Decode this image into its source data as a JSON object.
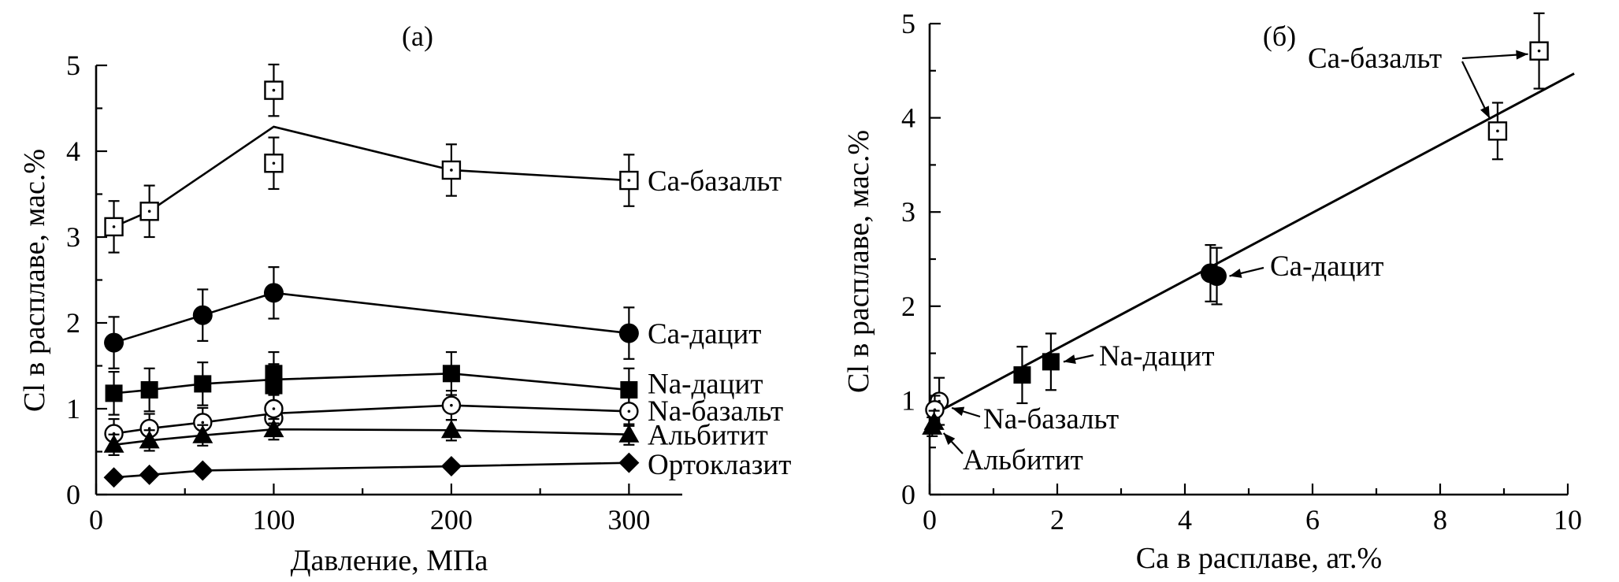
{
  "chart_data": [
    {
      "type": "line",
      "panel_label": "(а)",
      "xlabel": "Давление, МПа",
      "ylabel": "Cl в расплаве, мас.%",
      "xlim": [
        0,
        330
      ],
      "ylim": [
        0,
        5
      ],
      "xticks": [
        "0",
        "100",
        "200",
        "300"
      ],
      "yticks": [
        "0",
        "1",
        "2",
        "3",
        "4",
        "5"
      ],
      "grid": false,
      "series": [
        {
          "name": "Са-базальт",
          "marker": "open-square",
          "connect": "mean",
          "points": [
            {
              "x": 10,
              "y": 3.12,
              "err": 0.3
            },
            {
              "x": 30,
              "y": 3.3,
              "err": 0.3
            },
            {
              "x": 100,
              "y": 3.86,
              "err": 0.3
            },
            {
              "x": 100,
              "y": 4.71,
              "err": 0.3
            },
            {
              "x": 200,
              "y": 3.78,
              "err": 0.3
            },
            {
              "x": 300,
              "y": 3.66,
              "err": 0.3
            }
          ]
        },
        {
          "name": "Са-дацит",
          "marker": "filled-circle",
          "connect": "mean",
          "points": [
            {
              "x": 10,
              "y": 1.77,
              "err": 0.3
            },
            {
              "x": 60,
              "y": 2.09,
              "err": 0.3
            },
            {
              "x": 100,
              "y": 2.35,
              "err": 0.3
            },
            {
              "x": 300,
              "y": 1.88,
              "err": 0.3
            }
          ]
        },
        {
          "name": "Na-дацит",
          "marker": "filled-square",
          "connect": "mean",
          "points": [
            {
              "x": 10,
              "y": 1.18,
              "err": 0.25
            },
            {
              "x": 30,
              "y": 1.22,
              "err": 0.25
            },
            {
              "x": 60,
              "y": 1.29,
              "err": 0.25
            },
            {
              "x": 100,
              "y": 1.27,
              "err": 0.25
            },
            {
              "x": 100,
              "y": 1.41,
              "err": 0.25
            },
            {
              "x": 200,
              "y": 1.41,
              "err": 0.25
            },
            {
              "x": 300,
              "y": 1.22,
              "err": 0.25
            }
          ]
        },
        {
          "name": "Na-базальт",
          "marker": "open-circle",
          "connect": "mean",
          "points": [
            {
              "x": 10,
              "y": 0.71,
              "err": 0.17
            },
            {
              "x": 30,
              "y": 0.77,
              "err": 0.17
            },
            {
              "x": 60,
              "y": 0.84,
              "err": 0.17
            },
            {
              "x": 100,
              "y": 0.89,
              "err": 0.17
            },
            {
              "x": 100,
              "y": 1.0,
              "err": 0.17
            },
            {
              "x": 200,
              "y": 1.04,
              "err": 0.17
            },
            {
              "x": 300,
              "y": 0.97,
              "err": 0.17
            }
          ]
        },
        {
          "name": "Альбитит",
          "marker": "filled-triangle",
          "connect": "mean",
          "points": [
            {
              "x": 10,
              "y": 0.58,
              "err": 0.12
            },
            {
              "x": 30,
              "y": 0.63,
              "err": 0.12
            },
            {
              "x": 60,
              "y": 0.69,
              "err": 0.12
            },
            {
              "x": 100,
              "y": 0.76,
              "err": 0.12
            },
            {
              "x": 200,
              "y": 0.75,
              "err": 0.12
            },
            {
              "x": 300,
              "y": 0.7,
              "err": 0.12
            }
          ]
        },
        {
          "name": "Ортоклазит",
          "marker": "filled-diamond",
          "connect": "mean",
          "points": [
            {
              "x": 10,
              "y": 0.2,
              "err": 0
            },
            {
              "x": 30,
              "y": 0.23,
              "err": 0
            },
            {
              "x": 60,
              "y": 0.28,
              "err": 0
            },
            {
              "x": 200,
              "y": 0.33,
              "err": 0
            },
            {
              "x": 300,
              "y": 0.37,
              "err": 0
            }
          ]
        }
      ]
    },
    {
      "type": "scatter",
      "panel_label": "(б)",
      "xlabel": "Са в расплаве, ат.%",
      "ylabel": "Cl в расплаве, мас.%",
      "xlim": [
        0,
        10
      ],
      "ylim": [
        0,
        5
      ],
      "xticks": [
        "0",
        "2",
        "4",
        "6",
        "8",
        "10"
      ],
      "yticks": [
        "0",
        "1",
        "2",
        "3",
        "4",
        "5"
      ],
      "grid": false,
      "fit_line": {
        "x": [
          0,
          10.1
        ],
        "y": [
          0.83,
          4.47
        ]
      },
      "series": [
        {
          "name": "Са-базальт",
          "marker": "open-square",
          "points": [
            {
              "x": 8.9,
              "y": 3.86,
              "err": 0.3
            },
            {
              "x": 9.55,
              "y": 4.71,
              "err": 0.4
            }
          ]
        },
        {
          "name": "Са-дацит",
          "marker": "filled-circle",
          "points": [
            {
              "x": 4.4,
              "y": 2.35,
              "err": 0.3
            },
            {
              "x": 4.5,
              "y": 2.32,
              "err": 0.3
            }
          ]
        },
        {
          "name": "Na-дацит",
          "marker": "filled-square",
          "points": [
            {
              "x": 1.45,
              "y": 1.27,
              "err": 0.3
            },
            {
              "x": 1.9,
              "y": 1.41,
              "err": 0.3
            }
          ]
        },
        {
          "name": "Na-базальт",
          "marker": "open-circle",
          "points": [
            {
              "x": 0.15,
              "y": 0.99,
              "err": 0.25
            },
            {
              "x": 0.08,
              "y": 0.9,
              "err": 0.15
            }
          ]
        },
        {
          "name": "Альбитит",
          "marker": "filled-triangle",
          "points": [
            {
              "x": 0.07,
              "y": 0.77,
              "err": 0.12
            },
            {
              "x": 0.04,
              "y": 0.72,
              "err": 0.1
            }
          ]
        }
      ]
    }
  ]
}
